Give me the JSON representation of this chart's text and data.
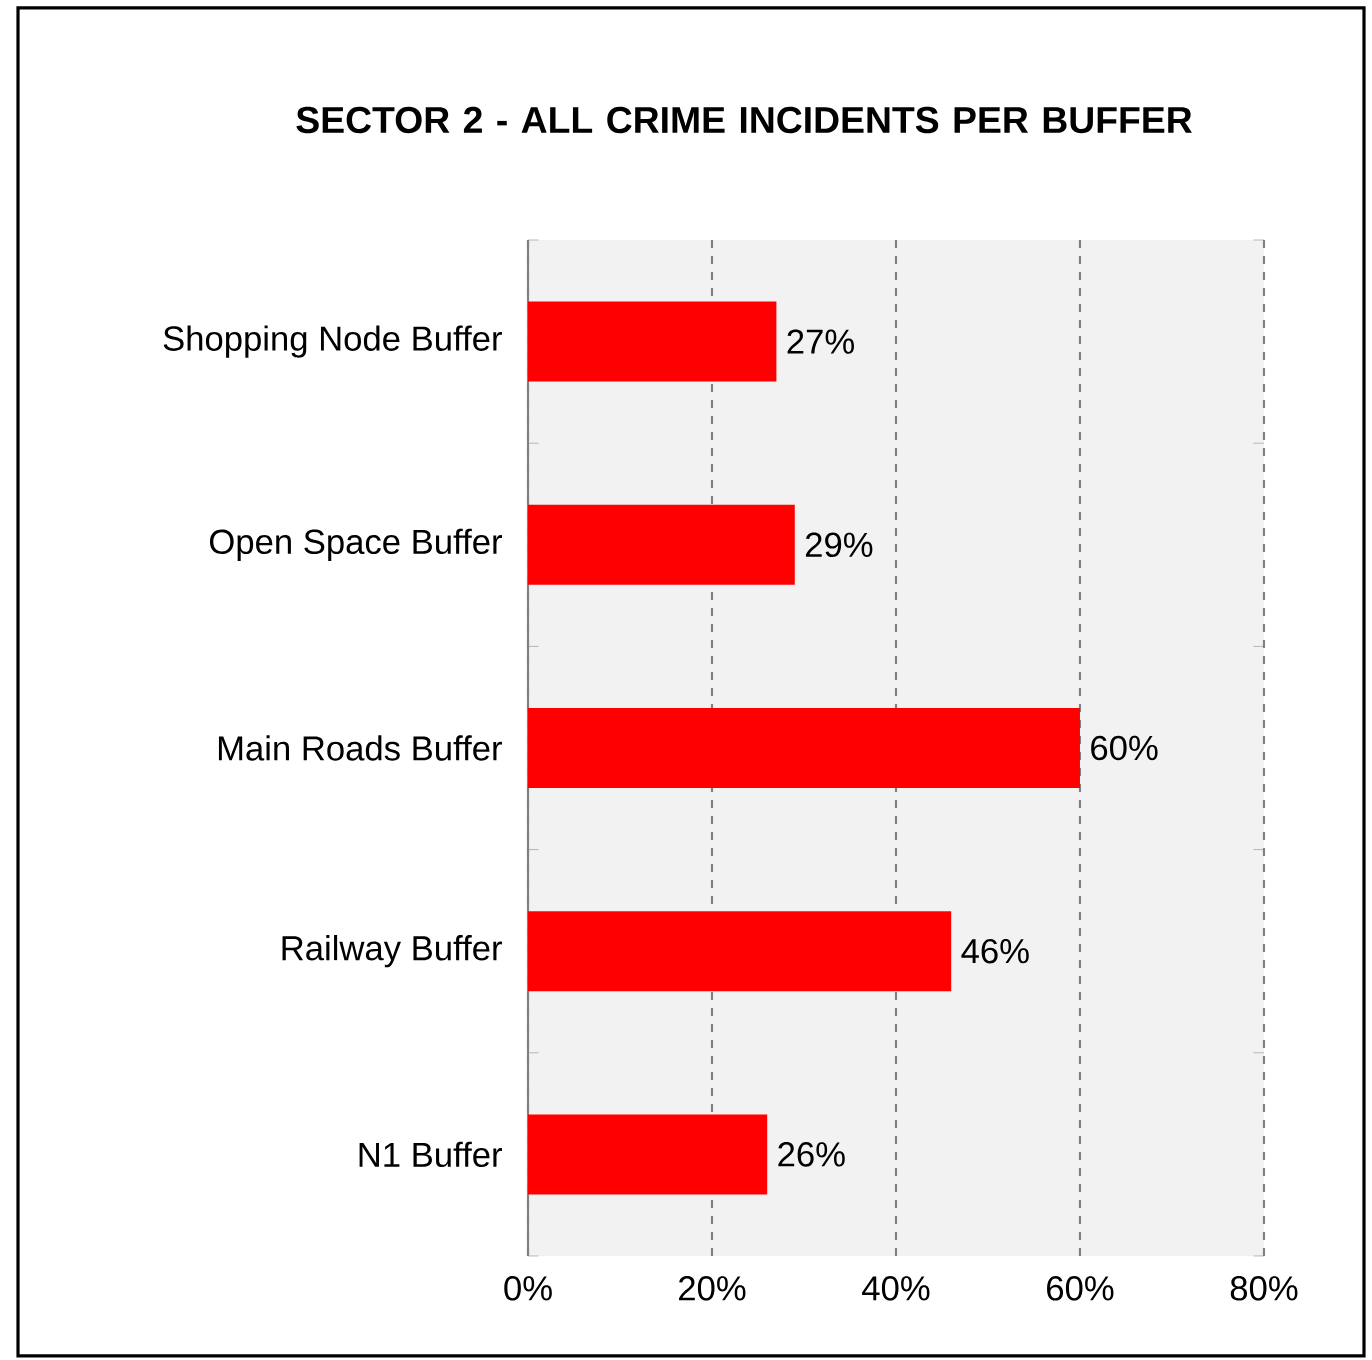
{
  "chart_data": {
    "type": "bar",
    "orientation": "horizontal",
    "title": "SECTOR 2 - ALL CRIME INCIDENTS PER BUFFER",
    "categories": [
      "Shopping Node Buffer",
      "Open Space Buffer",
      "Main Roads Buffer",
      "Railway Buffer",
      "N1 Buffer"
    ],
    "values": [
      27,
      29,
      60,
      46,
      26
    ],
    "value_labels": [
      "27%",
      "29%",
      "60%",
      "46%",
      "26%"
    ],
    "color": "#ff0000",
    "xlim": [
      0,
      80
    ],
    "xticks": [
      {
        "value": 0,
        "label": "0%"
      },
      {
        "value": 20,
        "label": "20%"
      },
      {
        "value": 40,
        "label": "40%"
      },
      {
        "value": 60,
        "label": "60%"
      },
      {
        "value": 80,
        "label": "80%"
      }
    ],
    "grid": "x"
  }
}
